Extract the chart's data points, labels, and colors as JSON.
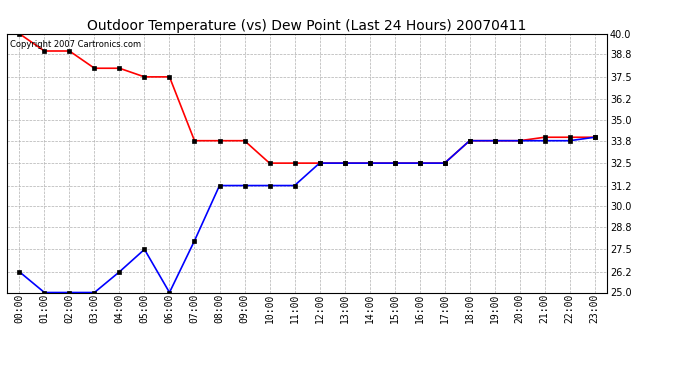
{
  "title": "Outdoor Temperature (vs) Dew Point (Last 24 Hours) 20070411",
  "copyright": "Copyright 2007 Cartronics.com",
  "hours": [
    "00:00",
    "01:00",
    "02:00",
    "03:00",
    "04:00",
    "05:00",
    "06:00",
    "07:00",
    "08:00",
    "09:00",
    "10:00",
    "11:00",
    "12:00",
    "13:00",
    "14:00",
    "15:00",
    "16:00",
    "17:00",
    "18:00",
    "19:00",
    "20:00",
    "21:00",
    "22:00",
    "23:00"
  ],
  "temp": [
    40.0,
    39.0,
    39.0,
    38.0,
    38.0,
    37.5,
    37.5,
    33.8,
    33.8,
    33.8,
    32.5,
    32.5,
    32.5,
    32.5,
    32.5,
    32.5,
    32.5,
    32.5,
    33.8,
    33.8,
    33.8,
    34.0,
    34.0,
    34.0
  ],
  "dew": [
    26.2,
    25.0,
    25.0,
    25.0,
    26.2,
    27.5,
    25.0,
    28.0,
    31.2,
    31.2,
    31.2,
    31.2,
    32.5,
    32.5,
    32.5,
    32.5,
    32.5,
    32.5,
    33.8,
    33.8,
    33.8,
    33.8,
    33.8,
    34.0
  ],
  "temp_color": "#ff0000",
  "dew_color": "#0000ff",
  "bg_color": "#ffffff",
  "plot_bg_color": "#ffffff",
  "grid_color": "#b0b0b0",
  "title_color": "#000000",
  "ylim_min": 25.0,
  "ylim_max": 40.0,
  "yticks": [
    25.0,
    26.2,
    27.5,
    28.8,
    30.0,
    31.2,
    32.5,
    33.8,
    35.0,
    36.2,
    37.5,
    38.8,
    40.0
  ],
  "marker": "s",
  "marker_size": 2.5,
  "line_width": 1.2,
  "title_fontsize": 10,
  "tick_fontsize": 7,
  "copyright_fontsize": 6,
  "fig_width": 6.9,
  "fig_height": 3.75,
  "dpi": 100
}
